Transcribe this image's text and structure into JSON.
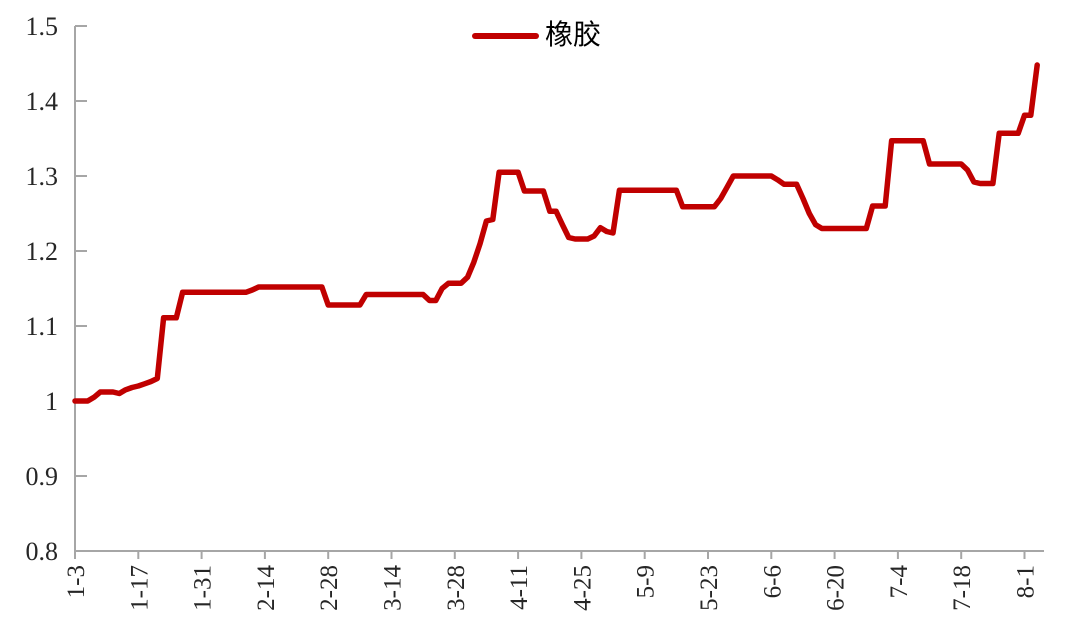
{
  "colors": {
    "line": "#c00000",
    "axis": "#a6a6a6",
    "tick_label": "#262626",
    "legend_text": "#000000",
    "background": "#ffffff"
  },
  "legend": {
    "label": "橡胶",
    "swatch": "red-line"
  },
  "chart_data": {
    "type": "line",
    "title": "",
    "xlabel": "",
    "ylabel": "",
    "grid": false,
    "legend_position": "top-center",
    "ylim": [
      0.8,
      1.5
    ],
    "y_tick_labels": [
      "0.8",
      "0.9",
      "1",
      "1.1",
      "1.2",
      "1.3",
      "1.4",
      "1.5"
    ],
    "y_tick_values": [
      0.8,
      0.9,
      1.0,
      1.1,
      1.2,
      1.3,
      1.4,
      1.5
    ],
    "x_tick_labels": [
      "1-3",
      "1-17",
      "1-31",
      "2-14",
      "2-28",
      "3-14",
      "3-28",
      "4-11",
      "4-25",
      "5-9",
      "5-23",
      "6-6",
      "6-20",
      "7-4",
      "7-18",
      "8-1"
    ],
    "x_tick_every": 10,
    "series": [
      {
        "name": "橡胶",
        "color": "#c00000",
        "values": [
          1.0,
          1.0,
          1.0,
          1.005,
          1.012,
          1.012,
          1.012,
          1.01,
          1.015,
          1.018,
          1.02,
          1.023,
          1.026,
          1.03,
          1.111,
          1.111,
          1.111,
          1.145,
          1.145,
          1.145,
          1.145,
          1.145,
          1.145,
          1.145,
          1.145,
          1.145,
          1.145,
          1.145,
          1.148,
          1.152,
          1.152,
          1.152,
          1.152,
          1.152,
          1.152,
          1.152,
          1.152,
          1.152,
          1.152,
          1.152,
          1.128,
          1.128,
          1.128,
          1.128,
          1.128,
          1.128,
          1.142,
          1.142,
          1.142,
          1.142,
          1.142,
          1.142,
          1.142,
          1.142,
          1.142,
          1.142,
          1.134,
          1.134,
          1.15,
          1.157,
          1.157,
          1.157,
          1.165,
          1.185,
          1.21,
          1.24,
          1.242,
          1.305,
          1.305,
          1.305,
          1.305,
          1.28,
          1.28,
          1.28,
          1.28,
          1.253,
          1.253,
          1.235,
          1.218,
          1.216,
          1.216,
          1.216,
          1.22,
          1.231,
          1.226,
          1.224,
          1.281,
          1.281,
          1.281,
          1.281,
          1.281,
          1.281,
          1.281,
          1.281,
          1.281,
          1.281,
          1.259,
          1.259,
          1.259,
          1.259,
          1.259,
          1.259,
          1.27,
          1.285,
          1.3,
          1.3,
          1.3,
          1.3,
          1.3,
          1.3,
          1.3,
          1.295,
          1.289,
          1.289,
          1.289,
          1.27,
          1.25,
          1.235,
          1.23,
          1.23,
          1.23,
          1.23,
          1.23,
          1.23,
          1.23,
          1.23,
          1.26,
          1.26,
          1.26,
          1.347,
          1.347,
          1.347,
          1.347,
          1.347,
          1.347,
          1.316,
          1.316,
          1.316,
          1.316,
          1.316,
          1.316,
          1.308,
          1.292,
          1.29,
          1.29,
          1.29,
          1.357,
          1.357,
          1.357,
          1.357,
          1.381,
          1.381,
          1.448
        ]
      }
    ]
  }
}
